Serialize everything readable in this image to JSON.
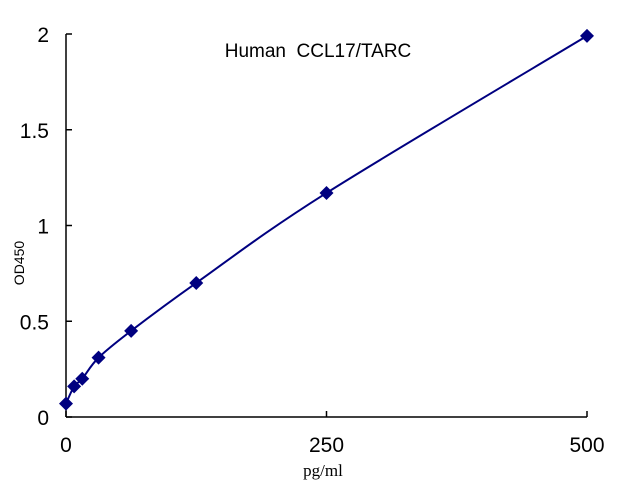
{
  "chart_data": {
    "type": "scatter",
    "title": "Human  CCL17/TARC",
    "xlabel": "pg/ml",
    "ylabel": "OD450",
    "xlim": [
      0,
      500
    ],
    "ylim": [
      0,
      2
    ],
    "x_ticks": [
      0,
      250,
      500
    ],
    "x_tick_labels": [
      "0",
      "250",
      "500"
    ],
    "y_ticks": [
      0,
      0.5,
      1,
      1.5,
      2
    ],
    "y_tick_labels": [
      "0",
      "0.5",
      "1",
      "1.5",
      "2"
    ],
    "grid": false,
    "legend": "none",
    "trendline": "smooth curve",
    "series": [
      {
        "x": [
          0,
          7.8,
          15.6,
          31.25,
          62.5,
          125,
          250,
          500
        ],
        "y": [
          0.07,
          0.16,
          0.2,
          0.31,
          0.45,
          0.7,
          1.17,
          1.99
        ]
      }
    ],
    "colors": {
      "series": "#000080",
      "axes": "#000000"
    }
  }
}
